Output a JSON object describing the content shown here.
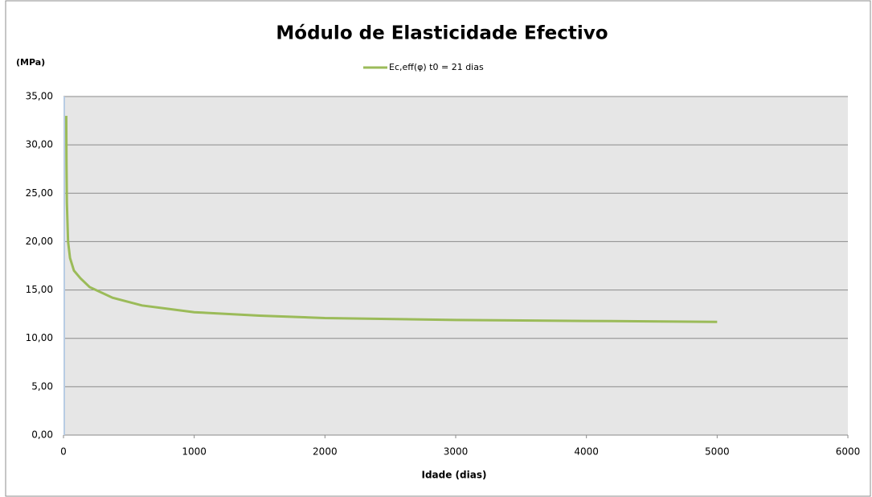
{
  "chart_data": {
    "type": "line",
    "title": "Módulo de Elasticidade Efectivo",
    "y_label": "(MPa)",
    "x_label": "Idade (dias)",
    "legend": "top",
    "grid": true,
    "x": [
      21,
      23,
      26,
      35,
      50,
      80,
      130,
      200,
      375,
      600,
      1000,
      1500,
      2000,
      3000,
      4000,
      5000
    ],
    "series": [
      {
        "name": "Ec,eff(φ) t0 = 21 dias",
        "color": "#9bbb59",
        "values": [
          33,
          28,
          24,
          20,
          18.3,
          17,
          16.2,
          15.3,
          14.2,
          13.4,
          12.7,
          12.35,
          12.1,
          11.9,
          11.8,
          11.7
        ]
      }
    ],
    "xlim": [
      0,
      6000
    ],
    "xticks": [
      0,
      1000,
      2000,
      3000,
      4000,
      5000,
      6000
    ],
    "ylim": [
      0,
      35
    ],
    "yticks": [
      {
        "value": 0,
        "label": "0,00"
      },
      {
        "value": 5,
        "label": "5,00"
      },
      {
        "value": 10,
        "label": "10,00"
      },
      {
        "value": 15,
        "label": "15,00"
      },
      {
        "value": 20,
        "label": "20,00"
      },
      {
        "value": 25,
        "label": "25,00"
      },
      {
        "value": 30,
        "label": "30,00"
      },
      {
        "value": 35,
        "label": "35,00"
      }
    ]
  }
}
